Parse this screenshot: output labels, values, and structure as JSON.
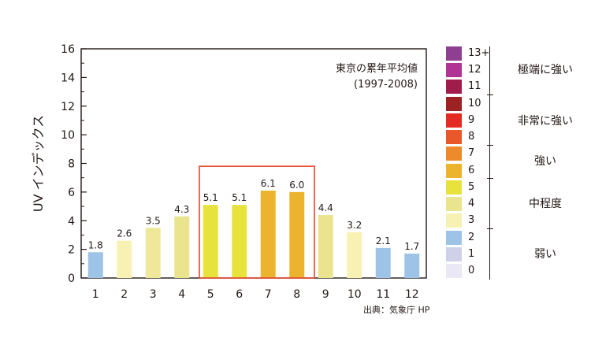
{
  "chart_data": {
    "type": "bar",
    "annotation": [
      "東京の累年平均値",
      "(1997-2008)"
    ],
    "ylabel": "UV インデックス",
    "xlabel": "",
    "ylim": [
      0,
      16
    ],
    "yticks": [
      0,
      2,
      4,
      6,
      8,
      10,
      12,
      14,
      16
    ],
    "categories": [
      "1",
      "2",
      "3",
      "4",
      "5",
      "6",
      "7",
      "8",
      "9",
      "10",
      "11",
      "12"
    ],
    "values": [
      1.8,
      2.6,
      3.5,
      4.3,
      5.1,
      5.1,
      6.1,
      6.0,
      4.4,
      3.2,
      2.1,
      1.7
    ],
    "value_labels": [
      "1.8",
      "2.6",
      "3.5",
      "4.3",
      "5.1",
      "5.1",
      "6.1",
      "6.0",
      "4.4",
      "3.2",
      "2.1",
      "1.7"
    ],
    "bar_colors": [
      "#9dc3e6",
      "#f7f2b3",
      "#efe89a",
      "#eae48f",
      "#e8e23c",
      "#e8e23c",
      "#ecb42e",
      "#ecb42e",
      "#eae48f",
      "#f7f2b3",
      "#9dc3e6",
      "#9dc3e6"
    ],
    "highlight_range": [
      "5",
      "8"
    ],
    "highlight_color": "#e8452c",
    "grid": false
  },
  "legend": {
    "swatches": [
      {
        "label": "13+",
        "color": "#8f3f92"
      },
      {
        "label": "12",
        "color": "#b03493"
      },
      {
        "label": "11",
        "color": "#a01c4a"
      },
      {
        "label": "10",
        "color": "#9c2224"
      },
      {
        "label": "9",
        "color": "#e42b21"
      },
      {
        "label": "8",
        "color": "#e9582a"
      },
      {
        "label": "7",
        "color": "#ec8a2c"
      },
      {
        "label": "6",
        "color": "#ecb42e"
      },
      {
        "label": "5",
        "color": "#e8e23c"
      },
      {
        "label": "4",
        "color": "#eae48f"
      },
      {
        "label": "3",
        "color": "#f7f2b3"
      },
      {
        "label": "2",
        "color": "#9dc3e6"
      },
      {
        "label": "1",
        "color": "#cfd1e8"
      },
      {
        "label": "0",
        "color": "#e9e8f4"
      }
    ],
    "categories": [
      "極端に強い",
      "非常に強い",
      "強い",
      "中程度",
      "弱い"
    ]
  },
  "source": "出典：気象庁 HP"
}
